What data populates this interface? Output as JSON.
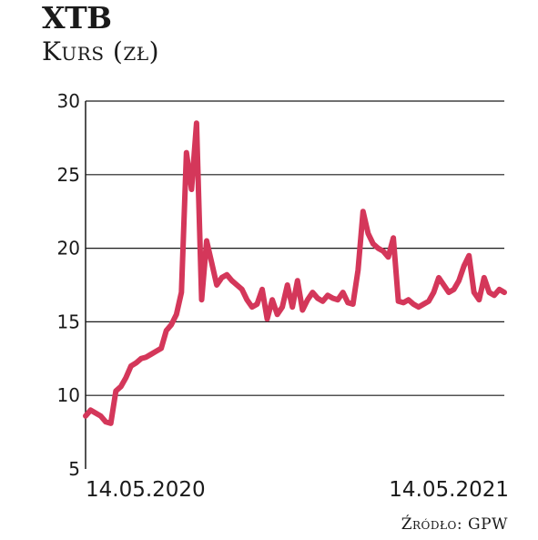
{
  "title": "XTB",
  "subtitle": "Kurs (zł)",
  "source": "Źródło: GPW",
  "colors": {
    "line": "#d4375a",
    "grid": "#1a1a1a"
  },
  "chart_data": {
    "type": "line",
    "title": "XTB",
    "ylabel": "Kurs (zł)",
    "ylim": [
      5,
      30
    ],
    "yticks": [
      5,
      10,
      15,
      20,
      25,
      30
    ],
    "xtick_labels": [
      "14.05.2020",
      "14.05.2021"
    ],
    "grid": true,
    "series": [
      {
        "values": [
          8.6,
          9.0,
          8.8,
          8.6,
          8.2,
          8.1,
          10.3,
          10.6,
          11.2,
          12.0,
          12.2,
          12.5,
          12.6,
          12.8,
          13.0,
          13.2,
          14.4,
          14.8,
          15.5,
          17.0,
          26.5,
          24.0,
          28.5,
          16.5,
          20.5,
          19.0,
          17.5,
          18.0,
          18.2,
          17.8,
          17.5,
          17.2,
          16.5,
          16.0,
          16.2,
          17.2,
          15.2,
          16.5,
          15.5,
          16.0,
          17.5,
          16.0,
          17.8,
          15.8,
          16.5,
          17.0,
          16.6,
          16.4,
          16.8,
          16.6,
          16.5,
          17.0,
          16.3,
          16.2,
          18.5,
          22.5,
          21.0,
          20.3,
          20.0,
          19.8,
          19.4,
          20.7,
          16.4,
          16.3,
          16.5,
          16.2,
          16.0,
          16.2,
          16.4,
          17.0,
          18.0,
          17.5,
          17.0,
          17.2,
          17.8,
          18.8,
          19.5,
          17.0,
          16.5,
          18.0,
          17.0,
          16.8,
          17.2,
          17.0
        ]
      }
    ]
  }
}
